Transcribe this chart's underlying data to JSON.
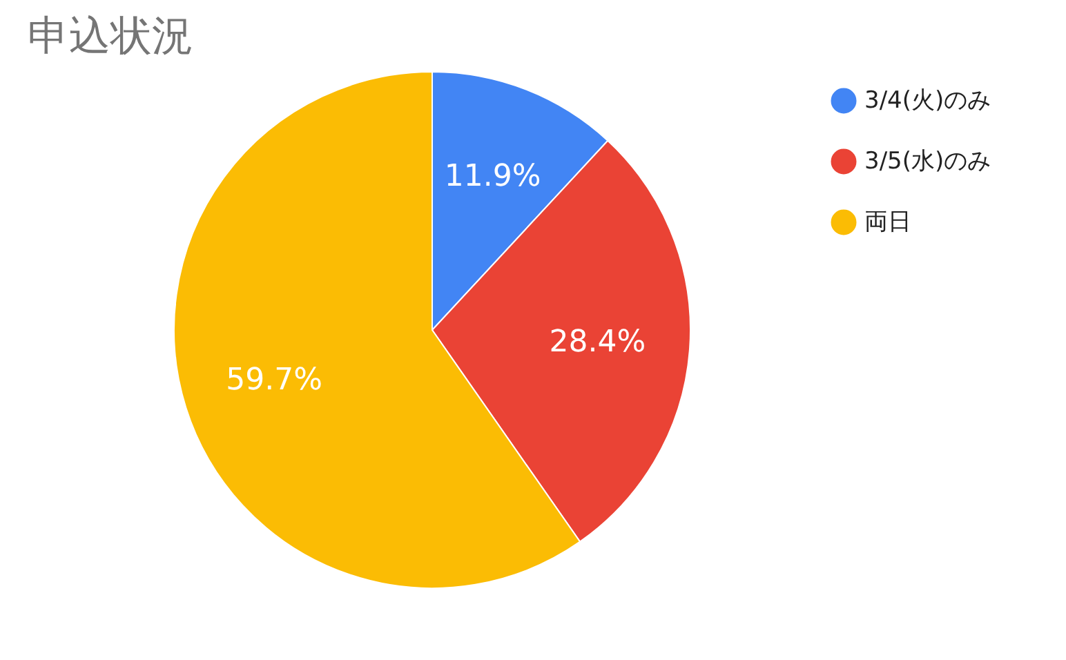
{
  "chart_data": {
    "type": "pie",
    "title": "申込状況",
    "categories": [
      "3/4(火)のみ",
      "3/5(水)のみ",
      "両日"
    ],
    "values": [
      11.9,
      28.4,
      59.7
    ],
    "colors": [
      "#4285f4",
      "#ea4335",
      "#fbbc04"
    ],
    "value_labels": [
      "11.9%",
      "28.4%",
      "59.7%"
    ],
    "legend": "right"
  }
}
